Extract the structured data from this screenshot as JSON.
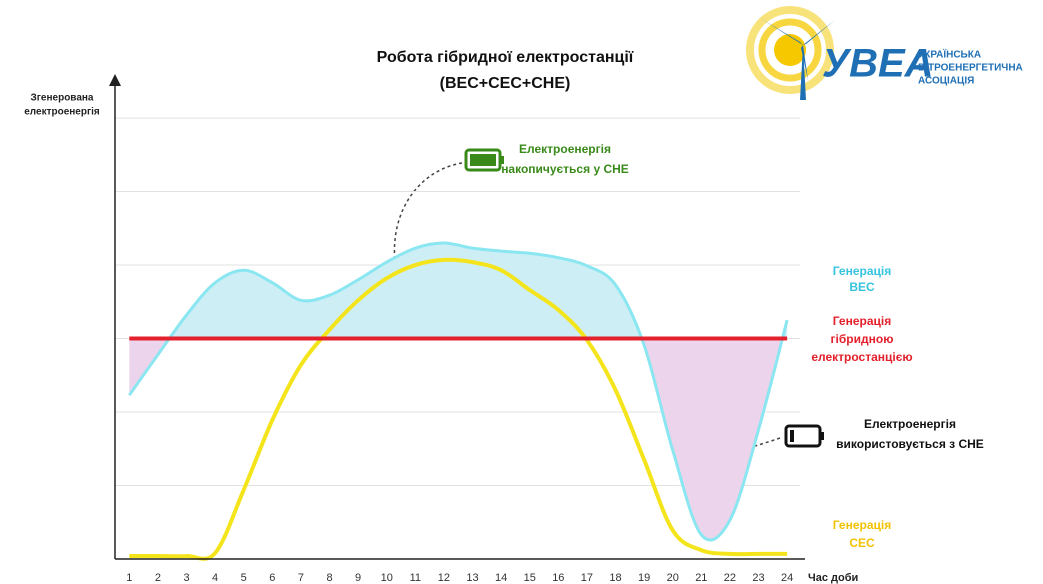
{
  "chart_data": {
    "type": "line",
    "title": [
      "Робота гібридної електростанції",
      "(ВЕС+СЕС+СНЕ)"
    ],
    "y_label": [
      "Згенерована",
      "електроенергія"
    ],
    "x_label": "Час доби",
    "x": [
      1,
      2,
      3,
      4,
      5,
      6,
      7,
      8,
      9,
      10,
      11,
      12,
      13,
      14,
      15,
      16,
      17,
      18,
      19,
      20,
      21,
      22,
      23,
      24
    ],
    "xlim": [
      0.5,
      24.45
    ],
    "ylim": [
      0,
      6.45
    ],
    "yticks": [
      1,
      2,
      3,
      4,
      5,
      6
    ],
    "grid": true,
    "series": [
      {
        "name": "Генерація\nВЕС",
        "color": "#8ae6f0",
        "label_color": "#36c3de",
        "fill_above": "#cdeef5",
        "fill_below": "#ecd4ec",
        "values": [
          2.23,
          2.78,
          3.32,
          3.76,
          3.93,
          3.76,
          3.52,
          3.59,
          3.8,
          4.04,
          4.23,
          4.3,
          4.23,
          4.19,
          4.16,
          4.1,
          3.99,
          3.73,
          2.91,
          1.48,
          0.33,
          0.53,
          1.76,
          3.25
        ]
      },
      {
        "name": "Генерація\nгібридною\nелектростанцією",
        "color": "#e3202b",
        "label_color": "#e3202b",
        "values": [
          3,
          3,
          3,
          3,
          3,
          3,
          3,
          3,
          3,
          3,
          3,
          3,
          3,
          3,
          3,
          3,
          3,
          3,
          3,
          3,
          3,
          3,
          3,
          3
        ]
      },
      {
        "name": "Генерація\nСЕС",
        "color": "#f4e41c",
        "label_color": "#f2c200",
        "values": [
          0.04,
          0.04,
          0.04,
          0.08,
          0.94,
          1.89,
          2.64,
          3.12,
          3.52,
          3.82,
          4.0,
          4.07,
          4.04,
          3.93,
          3.66,
          3.39,
          2.98,
          2.3,
          1.35,
          0.39,
          0.12,
          0.07,
          0.07,
          0.07
        ]
      }
    ],
    "annotations": [
      "Електроенергія\nнакопичується у СНЕ",
      "Електроенергія\nвикористовується з СНЕ"
    ],
    "logo": {
      "name": "УВЕА",
      "text": [
        "УКРАЇНСЬКА",
        "ВІТРОЕНЕРГЕТИЧНА",
        "АСОЦІАЦІЯ"
      ]
    }
  }
}
